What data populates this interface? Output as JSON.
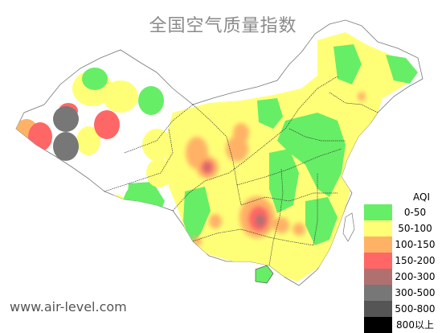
{
  "title": "全国空气质量指数",
  "watermark": "www.air-level.com",
  "legend": {
    "title": "AQI",
    "items": [
      {
        "label": "0-50",
        "color": "#66ee66"
      },
      {
        "label": "50-100",
        "color": "#ffff77"
      },
      {
        "label": "100-150",
        "color": "#ffb266"
      },
      {
        "label": "150-200",
        "color": "#ff6666"
      },
      {
        "label": "200-300",
        "color": "#b07070"
      },
      {
        "label": "300-500",
        "color": "#777777"
      },
      {
        "label": "500-800",
        "color": "#555555"
      },
      {
        "label": "800以上",
        "color": "#000000"
      }
    ]
  }
}
